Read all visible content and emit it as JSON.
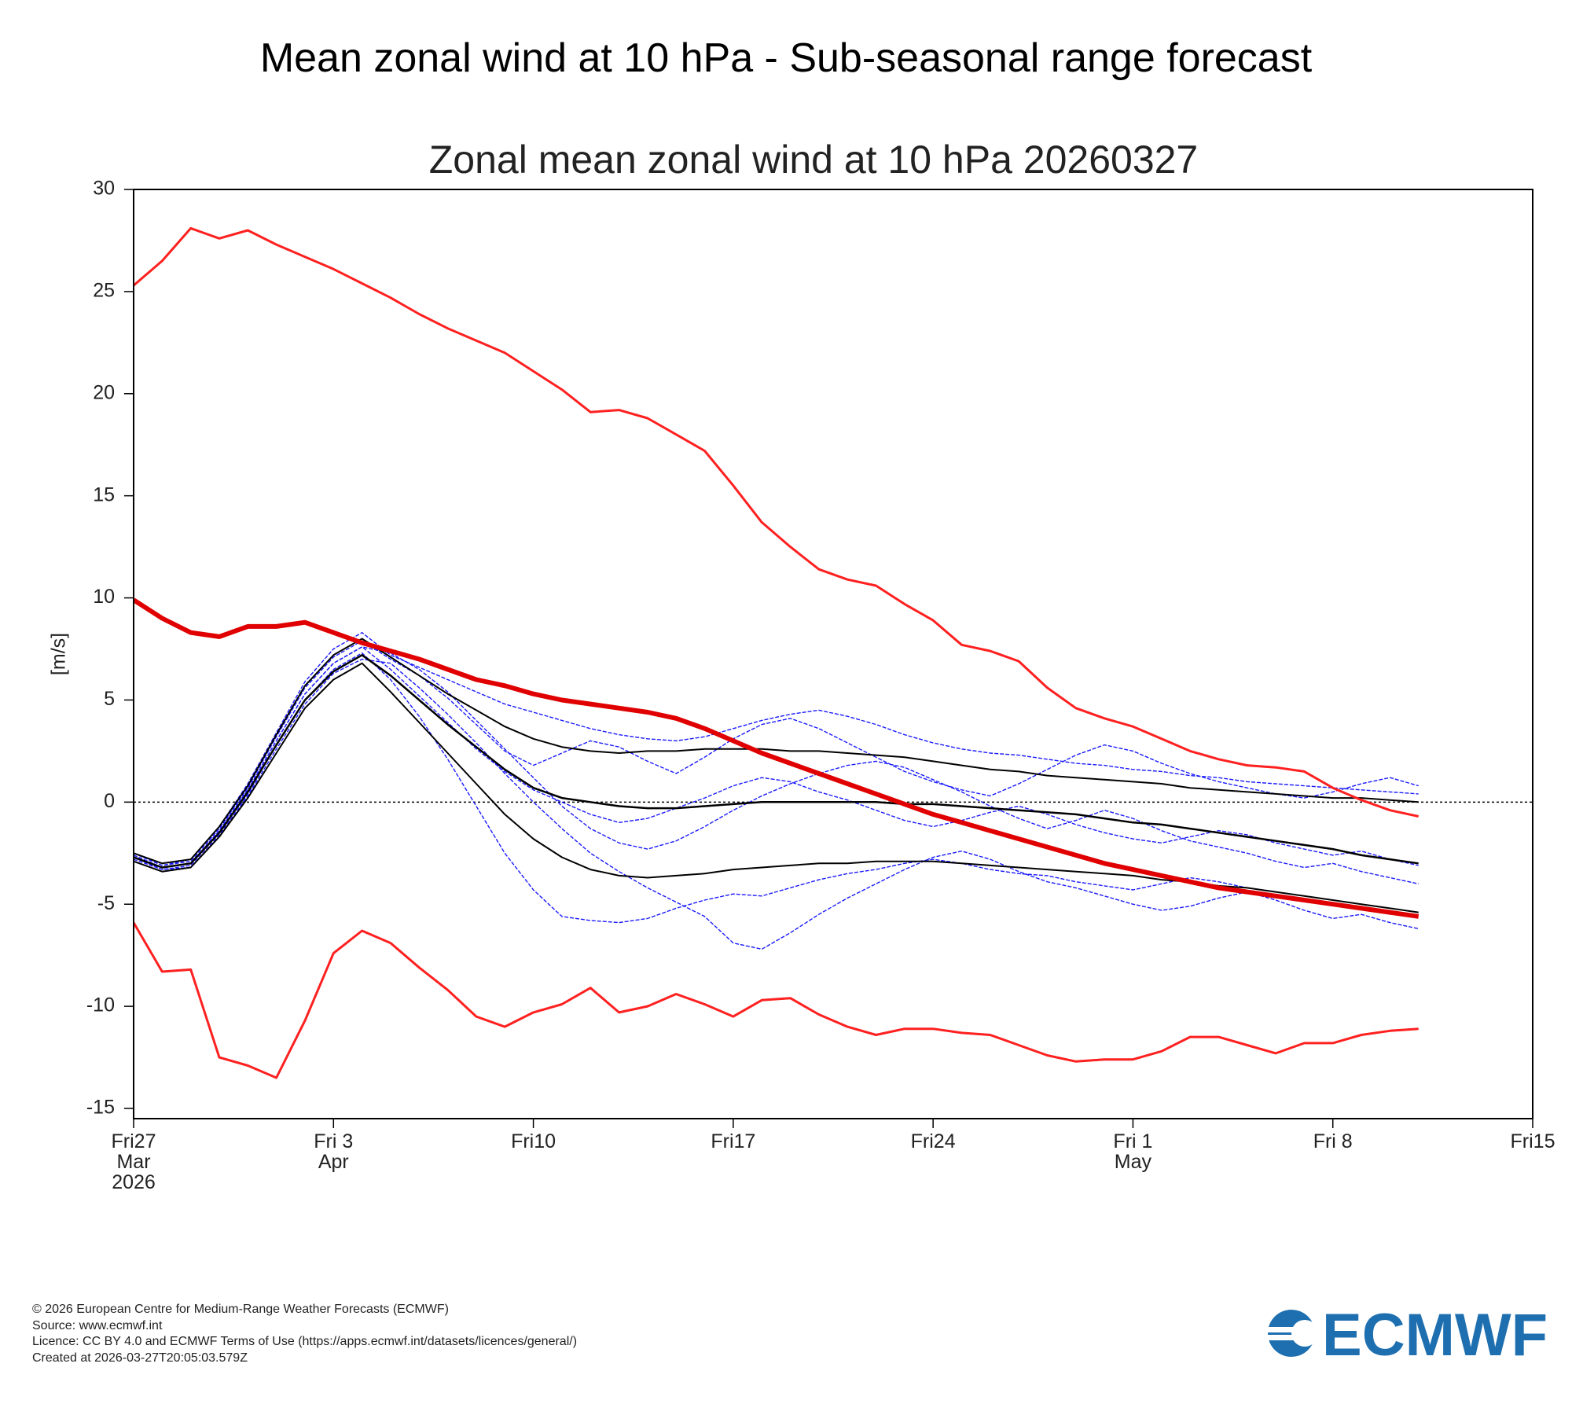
{
  "header": {
    "title": "Mean zonal wind at 10 hPa - Sub-seasonal range forecast"
  },
  "chart_data": {
    "type": "line",
    "title": "Zonal mean zonal wind at 10 hPa 20260327",
    "y_label": "[m/s]",
    "x": [
      "2026-03-27",
      "2026-03-28",
      "2026-03-29",
      "2026-03-30",
      "2026-03-31",
      "2026-04-01",
      "2026-04-02",
      "2026-04-03",
      "2026-04-04",
      "2026-04-05",
      "2026-04-06",
      "2026-04-07",
      "2026-04-08",
      "2026-04-09",
      "2026-04-10",
      "2026-04-11",
      "2026-04-12",
      "2026-04-13",
      "2026-04-14",
      "2026-04-15",
      "2026-04-16",
      "2026-04-17",
      "2026-04-18",
      "2026-04-19",
      "2026-04-20",
      "2026-04-21",
      "2026-04-22",
      "2026-04-23",
      "2026-04-24",
      "2026-04-25",
      "2026-04-26",
      "2026-04-27",
      "2026-04-28",
      "2026-04-29",
      "2026-04-30",
      "2026-05-01",
      "2026-05-02",
      "2026-05-03",
      "2026-05-04",
      "2026-05-05",
      "2026-05-06",
      "2026-05-07",
      "2026-05-08",
      "2026-05-09",
      "2026-05-10",
      "2026-05-11"
    ],
    "xlim": [
      "2026-03-27",
      "2026-05-15"
    ],
    "xticks": [
      {
        "value": "2026-03-27",
        "label": "Fri27\nMar\n2026"
      },
      {
        "value": "2026-04-03",
        "label": "Fri 3\nApr"
      },
      {
        "value": "2026-04-10",
        "label": "Fri10"
      },
      {
        "value": "2026-04-17",
        "label": "Fri17"
      },
      {
        "value": "2026-04-24",
        "label": "Fri24"
      },
      {
        "value": "2026-05-01",
        "label": "Fri 1\nMay"
      },
      {
        "value": "2026-05-08",
        "label": "Fri 8"
      },
      {
        "value": "2026-05-15",
        "label": "Fri15"
      }
    ],
    "ylim": [
      -15.5,
      30
    ],
    "yticks": [
      30,
      25,
      20,
      15,
      10,
      5,
      0,
      -5,
      -10,
      -15
    ],
    "reference_line": 0,
    "series": [
      {
        "color": "#1a1aff",
        "width": 1.4,
        "dash": true,
        "values": [
          -2.5,
          -3.1,
          -2.8,
          -1.2,
          0.9,
          3.4,
          5.9,
          7.5,
          8.3,
          7.2,
          6.6,
          6.0,
          5.4,
          4.8,
          4.4,
          4.0,
          3.6,
          3.3,
          3.1,
          3.0,
          3.2,
          3.6,
          4.0,
          4.3,
          4.5,
          4.2,
          3.8,
          3.3,
          2.9,
          2.6,
          2.4,
          2.3,
          2.1,
          1.9,
          1.8,
          1.6,
          1.5,
          1.3,
          1.2,
          1.0,
          0.9,
          0.8,
          0.7,
          0.6,
          0.5,
          0.4
        ]
      },
      {
        "color": "#1a1aff",
        "width": 1.4,
        "dash": true,
        "values": [
          -2.7,
          -3.3,
          -3.1,
          -1.5,
          0.4,
          2.8,
          5.0,
          6.5,
          7.3,
          6.0,
          4.2,
          2.1,
          -0.2,
          -2.5,
          -4.3,
          -5.6,
          -5.8,
          -5.9,
          -5.7,
          -5.2,
          -4.8,
          -4.5,
          -4.6,
          -4.2,
          -3.8,
          -3.5,
          -3.3,
          -3.0,
          -2.8,
          -3.0,
          -3.3,
          -3.5,
          -3.6,
          -3.9,
          -4.1,
          -4.3,
          -4.0,
          -3.7,
          -3.9,
          -4.2,
          -4.4,
          -4.6,
          -4.8,
          -5.0,
          -5.2,
          -5.4
        ]
      },
      {
        "color": "#1a1aff",
        "width": 1.4,
        "dash": true,
        "values": [
          -2.6,
          -3.2,
          -3.0,
          -1.4,
          0.6,
          3.0,
          5.3,
          6.8,
          7.6,
          6.5,
          5.2,
          3.9,
          2.6,
          1.5,
          0.6,
          0.0,
          -0.6,
          -1.0,
          -0.8,
          -0.3,
          0.2,
          0.8,
          1.2,
          1.0,
          0.5,
          0.1,
          -0.4,
          -0.9,
          -1.2,
          -0.9,
          -0.5,
          -0.2,
          -0.6,
          -1.1,
          -1.5,
          -1.8,
          -2.0,
          -1.7,
          -1.4,
          -1.6,
          -2.0,
          -2.3,
          -2.6,
          -2.4,
          -2.8,
          -3.1
        ]
      },
      {
        "color": "#1a1aff",
        "width": 1.4,
        "dash": true,
        "values": [
          -2.5,
          -3.1,
          -2.9,
          -1.3,
          0.7,
          3.2,
          5.6,
          7.1,
          7.9,
          7.0,
          6.2,
          5.1,
          3.8,
          2.5,
          1.8,
          2.4,
          3.0,
          2.7,
          2.0,
          1.4,
          2.2,
          3.1,
          3.8,
          4.1,
          3.6,
          2.9,
          2.2,
          1.5,
          1.0,
          0.6,
          0.3,
          0.9,
          1.6,
          2.3,
          2.8,
          2.5,
          1.9,
          1.4,
          1.0,
          0.7,
          0.4,
          0.2,
          0.5,
          0.9,
          1.2,
          0.8
        ]
      },
      {
        "color": "#1a1aff",
        "width": 1.4,
        "dash": true,
        "values": [
          -2.8,
          -3.3,
          -3.2,
          -1.6,
          0.3,
          2.6,
          4.8,
          6.3,
          7.0,
          6.8,
          5.6,
          4.3,
          2.9,
          1.4,
          0.0,
          -1.3,
          -2.5,
          -3.4,
          -4.2,
          -4.9,
          -5.6,
          -6.9,
          -7.2,
          -6.4,
          -5.5,
          -4.7,
          -4.0,
          -3.3,
          -2.7,
          -2.4,
          -2.8,
          -3.4,
          -3.9,
          -4.2,
          -4.6,
          -5.0,
          -5.3,
          -5.1,
          -4.7,
          -4.4,
          -4.8,
          -5.3,
          -5.7,
          -5.5,
          -5.9,
          -6.2
        ]
      },
      {
        "color": "#1a1aff",
        "width": 1.4,
        "dash": true,
        "values": [
          -2.6,
          -3.2,
          -3.0,
          -1.4,
          0.6,
          3.0,
          5.3,
          6.8,
          7.6,
          7.3,
          6.5,
          5.4,
          4.0,
          2.6,
          1.2,
          -0.2,
          -1.3,
          -2.0,
          -2.3,
          -1.9,
          -1.2,
          -0.4,
          0.3,
          0.9,
          1.4,
          1.8,
          2.0,
          1.7,
          1.1,
          0.5,
          -0.2,
          -0.8,
          -1.3,
          -0.9,
          -0.4,
          -0.8,
          -1.4,
          -1.9,
          -2.2,
          -2.5,
          -2.9,
          -3.2,
          -3.0,
          -3.4,
          -3.7,
          -4.0
        ]
      },
      {
        "color": "#000000",
        "width": 2,
        "values": [
          -2.5,
          -3.0,
          -2.8,
          -1.2,
          0.8,
          3.3,
          5.7,
          7.2,
          8.0,
          7.1,
          6.2,
          5.3,
          4.5,
          3.7,
          3.1,
          2.7,
          2.5,
          2.4,
          2.5,
          2.5,
          2.6,
          2.6,
          2.6,
          2.5,
          2.5,
          2.4,
          2.3,
          2.2,
          2.0,
          1.8,
          1.6,
          1.5,
          1.3,
          1.2,
          1.1,
          1.0,
          0.9,
          0.7,
          0.6,
          0.5,
          0.4,
          0.3,
          0.2,
          0.2,
          0.1,
          0.0
        ]
      },
      {
        "color": "#000000",
        "width": 2.5,
        "values": [
          -2.7,
          -3.2,
          -3.0,
          -1.5,
          0.5,
          2.8,
          5.0,
          6.4,
          7.2,
          6.2,
          5.0,
          3.8,
          2.7,
          1.6,
          0.7,
          0.2,
          0,
          -0.2,
          -0.3,
          -0.3,
          -0.2,
          -0.1,
          0,
          0,
          0,
          0,
          0,
          -0.1,
          -0.1,
          -0.2,
          -0.3,
          -0.4,
          -0.5,
          -0.6,
          -0.8,
          -1.0,
          -1.1,
          -1.3,
          -1.5,
          -1.7,
          -1.9,
          -2.1,
          -2.3,
          -2.6,
          -2.8,
          -3.0
        ]
      },
      {
        "color": "#000000",
        "width": 2,
        "values": [
          -2.9,
          -3.4,
          -3.2,
          -1.7,
          0.2,
          2.4,
          4.6,
          6.0,
          6.8,
          5.4,
          3.9,
          2.4,
          0.9,
          -0.6,
          -1.8,
          -2.7,
          -3.3,
          -3.6,
          -3.7,
          -3.6,
          -3.5,
          -3.3,
          -3.2,
          -3.1,
          -3.0,
          -3.0,
          -2.9,
          -2.9,
          -2.9,
          -3.0,
          -3.1,
          -3.2,
          -3.3,
          -3.4,
          -3.5,
          -3.6,
          -3.8,
          -3.9,
          -4.1,
          -4.2,
          -4.4,
          -4.6,
          -4.8,
          -5.0,
          -5.2,
          -5.4
        ]
      },
      {
        "color": "#e00000",
        "width": 6,
        "values": [
          9.9,
          9.0,
          8.3,
          8.1,
          8.6,
          8.6,
          8.8,
          8.3,
          7.8,
          7.4,
          7.0,
          6.5,
          6.0,
          5.7,
          5.3,
          5.0,
          4.8,
          4.6,
          4.4,
          4.1,
          3.6,
          3.0,
          2.4,
          1.9,
          1.4,
          0.9,
          0.4,
          -0.1,
          -0.6,
          -1.0,
          -1.4,
          -1.8,
          -2.2,
          -2.6,
          -3.0,
          -3.3,
          -3.6,
          -3.9,
          -4.2,
          -4.4,
          -4.6,
          -4.8,
          -5.0,
          -5.2,
          -5.4,
          -5.6
        ]
      },
      {
        "color": "#ff2020",
        "width": 3,
        "values": [
          25.3,
          26.5,
          28.1,
          27.6,
          28.0,
          27.3,
          26.7,
          26.1,
          25.4,
          24.7,
          23.9,
          23.2,
          22.6,
          22.0,
          21.1,
          20.2,
          19.1,
          19.2,
          18.8,
          18.0,
          17.2,
          15.5,
          13.7,
          12.5,
          11.4,
          10.9,
          10.6,
          9.7,
          8.9,
          7.7,
          7.4,
          6.9,
          5.6,
          4.6,
          4.1,
          3.7,
          3.1,
          2.5,
          2.1,
          1.8,
          1.7,
          1.5,
          0.7,
          0.1,
          -0.4,
          -0.7
        ]
      },
      {
        "color": "#ff2020",
        "width": 3,
        "values": [
          -5.9,
          -8.3,
          -8.2,
          -12.5,
          -12.9,
          -13.5,
          -10.7,
          -7.4,
          -6.3,
          -6.9,
          -8.1,
          -9.2,
          -10.5,
          -11.0,
          -10.3,
          -9.9,
          -9.1,
          -10.3,
          -10.0,
          -9.4,
          -9.9,
          -10.5,
          -9.7,
          -9.6,
          -10.4,
          -11.0,
          -11.4,
          -11.1,
          -11.1,
          -11.3,
          -11.4,
          -11.9,
          -12.4,
          -12.7,
          -12.6,
          -12.6,
          -12.2,
          -11.5,
          -11.5,
          -11.9,
          -12.3,
          -11.8,
          -11.8,
          -11.4,
          -11.2,
          -11.1
        ]
      }
    ]
  },
  "footer": {
    "lines": [
      "© 2026 European Centre for Medium-Range Weather Forecasts (ECMWF)",
      "Source: www.ecmwf.int",
      "Licence: CC BY 4.0 and ECMWF Terms of Use (https://apps.ecmwf.int/datasets/licences/general/)",
      "Created at 2026-03-27T20:05:03.579Z"
    ]
  },
  "logo": "ECMWF"
}
